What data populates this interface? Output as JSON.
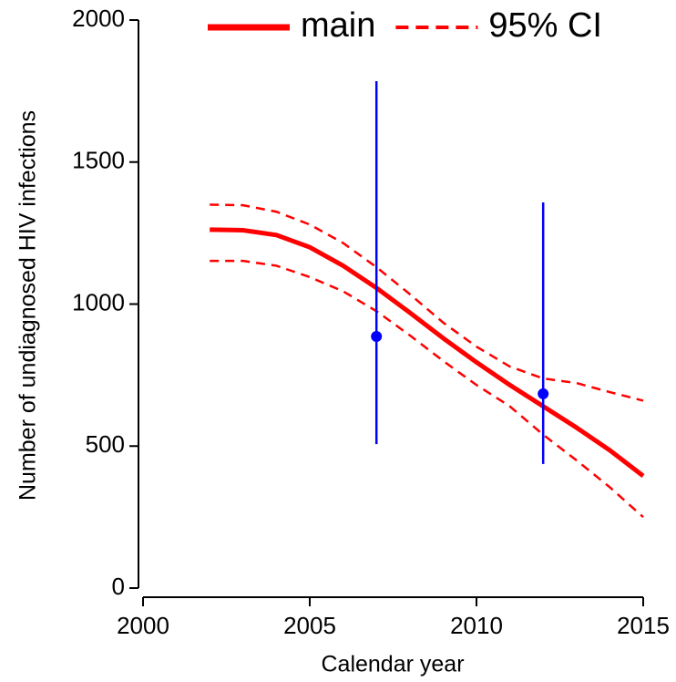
{
  "chart_data": {
    "type": "line",
    "x_label": "Calendar year",
    "y_label": "Number of undiagnosed HIV infections",
    "x": [
      2002,
      2003,
      2004,
      2005,
      2006,
      2007,
      2008,
      2009,
      2010,
      2011,
      2012,
      2013,
      2014,
      2015
    ],
    "series": [
      {
        "name": "main",
        "color": "#ff0000",
        "dashed": false,
        "values": [
          1262,
          1260,
          1243,
          1200,
          1135,
          1057,
          970,
          880,
          795,
          715,
          640,
          565,
          485,
          395
        ]
      },
      {
        "name": "95% CI",
        "color": "#ff0000",
        "dashed": true,
        "upper": [
          1350,
          1348,
          1325,
          1280,
          1215,
          1130,
          1035,
          935,
          850,
          780,
          738,
          722,
          690,
          660
        ],
        "lower": [
          1152,
          1152,
          1135,
          1095,
          1045,
          975,
          890,
          800,
          715,
          640,
          540,
          450,
          355,
          250
        ]
      }
    ],
    "points": {
      "color": "#0000ff",
      "x": [
        2007,
        2012
      ],
      "values": [
        886,
        684
      ],
      "low": [
        507,
        437
      ],
      "high": [
        1785,
        1358
      ]
    },
    "xlim": [
      2000,
      2015
    ],
    "xticks": [
      2000,
      2005,
      2010,
      2015
    ],
    "ylim": [
      0,
      2000
    ],
    "yticks": [
      0,
      500,
      1000,
      1500,
      2000
    ],
    "legend": "top"
  }
}
